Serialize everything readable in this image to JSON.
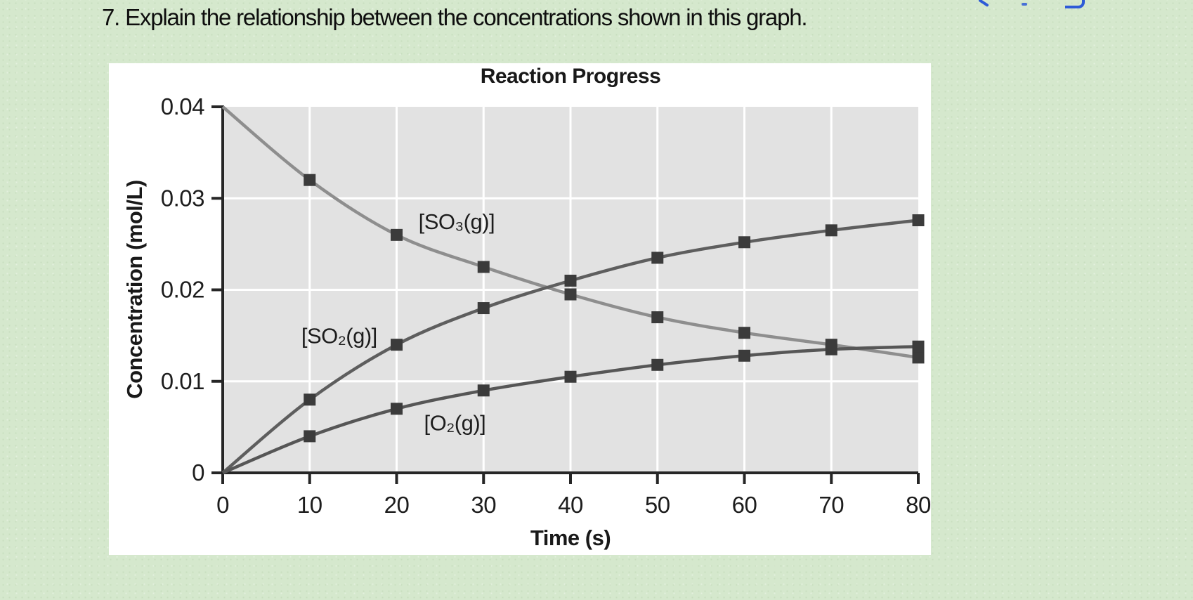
{
  "question": {
    "text": "7. Explain the relationship between the concentrations shown in this graph."
  },
  "colors": {
    "page_background": "#d5e8cd",
    "panel_background": "#ffffff",
    "plot_background": "#e2e2e2",
    "gridline": "#ffffff",
    "axis": "#262626",
    "marker": "#3b3b3b",
    "link_fragment_blue": "#2e5bd7"
  },
  "chart_data": {
    "type": "line",
    "title": "Reaction Progress",
    "xlabel": "Time (s)",
    "ylabel": "Concentration (mol/L)",
    "x": [
      0,
      10,
      20,
      30,
      40,
      50,
      60,
      70,
      80
    ],
    "xlim": [
      0,
      80
    ],
    "ylim": [
      0,
      0.04
    ],
    "xticks": [
      0,
      10,
      20,
      30,
      40,
      50,
      60,
      70,
      80
    ],
    "yticks": [
      0,
      0.01,
      0.02,
      0.03,
      0.04
    ],
    "ytick_labels": [
      "0",
      "0.01",
      "0.02",
      "0.03",
      "0.04"
    ],
    "grid": true,
    "legend_position": "inline-labels",
    "marker": {
      "shape": "square",
      "size": 17,
      "color": "#3b3b3b"
    },
    "series": [
      {
        "name": "[SO₃(g)]",
        "values": [
          0.04,
          0.032,
          0.026,
          0.0225,
          0.0195,
          0.017,
          0.0153,
          0.014,
          0.0126
        ],
        "color": "#8e8e8e",
        "label_anchor": {
          "x": 26.9,
          "y": 0.0275
        }
      },
      {
        "name": "[SO₂(g)]",
        "values": [
          0,
          0.008,
          0.014,
          0.018,
          0.021,
          0.0235,
          0.0252,
          0.0265,
          0.0276
        ],
        "color": "#5e5e5e",
        "label_anchor": {
          "x": 13.4,
          "y": 0.015
        }
      },
      {
        "name": "[O₂(g)]",
        "values": [
          0,
          0.004,
          0.007,
          0.009,
          0.0105,
          0.0118,
          0.0128,
          0.0135,
          0.0138
        ],
        "color": "#565656",
        "label_anchor": {
          "x": 26.7,
          "y": 0.0055
        }
      }
    ]
  }
}
